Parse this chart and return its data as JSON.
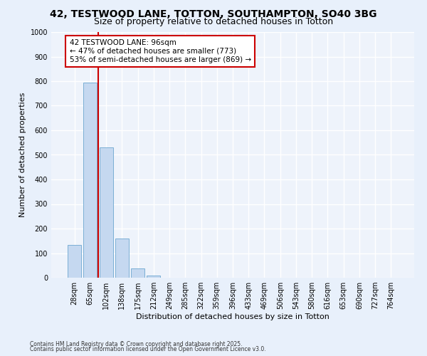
{
  "title1": "42, TESTWOOD LANE, TOTTON, SOUTHAMPTON, SO40 3BG",
  "title2": "Size of property relative to detached houses in Totton",
  "xlabel": "Distribution of detached houses by size in Totton",
  "ylabel": "Number of detached properties",
  "categories": [
    "28sqm",
    "65sqm",
    "102sqm",
    "138sqm",
    "175sqm",
    "212sqm",
    "249sqm",
    "285sqm",
    "322sqm",
    "359sqm",
    "396sqm",
    "433sqm",
    "469sqm",
    "506sqm",
    "543sqm",
    "580sqm",
    "616sqm",
    "653sqm",
    "690sqm",
    "727sqm",
    "764sqm"
  ],
  "values": [
    133,
    795,
    530,
    160,
    37,
    10,
    0,
    0,
    0,
    0,
    0,
    0,
    0,
    0,
    0,
    0,
    0,
    0,
    0,
    0,
    0
  ],
  "bar_color": "#c5d8f0",
  "bar_edge_color": "#7bafd4",
  "background_color": "#e8f0fb",
  "plot_bg_color": "#eef3fb",
  "grid_color": "#ffffff",
  "red_line_x": 1.5,
  "annotation_text": "42 TESTWOOD LANE: 96sqm\n← 47% of detached houses are smaller (773)\n53% of semi-detached houses are larger (869) →",
  "annotation_box_color": "#ffffff",
  "annotation_box_edge_color": "#cc0000",
  "red_line_color": "#cc0000",
  "ylim": [
    0,
    1000
  ],
  "yticks": [
    0,
    100,
    200,
    300,
    400,
    500,
    600,
    700,
    800,
    900,
    1000
  ],
  "footer1": "Contains HM Land Registry data © Crown copyright and database right 2025.",
  "footer2": "Contains public sector information licensed under the Open Government Licence v3.0.",
  "title1_fontsize": 10,
  "title2_fontsize": 9
}
